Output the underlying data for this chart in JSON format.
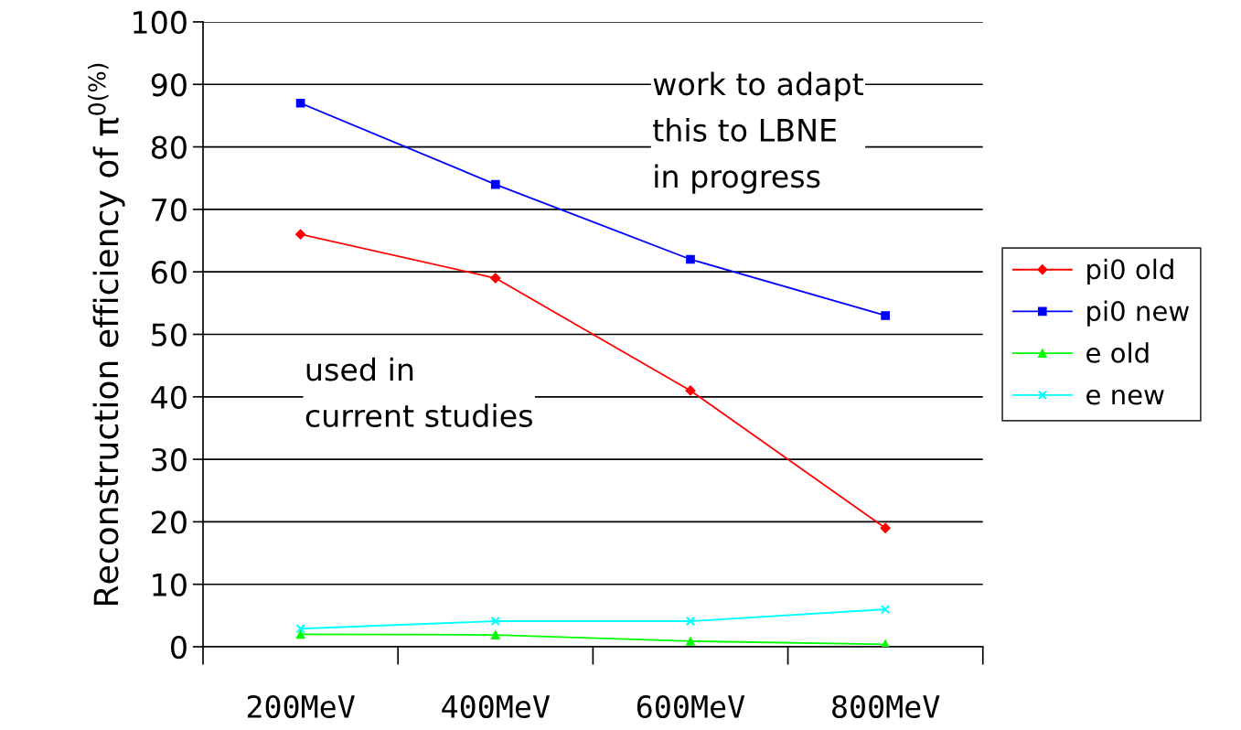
{
  "chart_data": {
    "type": "line",
    "ylabel": "Reconstruction efficiency of π$^{0(%)}$",
    "categories": [
      "200MeV",
      "400MeV",
      "600MeV",
      "800MeV"
    ],
    "series": [
      {
        "name": "pi0 old",
        "color": "#ff0000",
        "marker": "diamond",
        "values": [
          66,
          59,
          41,
          19
        ]
      },
      {
        "name": "pi0 new",
        "color": "#0000ff",
        "marker": "square",
        "values": [
          87,
          74,
          62,
          53
        ]
      },
      {
        "name": "e old",
        "color": "#00ff00",
        "marker": "triangle",
        "values": [
          2,
          1.9,
          0.9,
          0.4
        ]
      },
      {
        "name": "e new",
        "color": "#00ffff",
        "marker": "cross",
        "values": [
          2.9,
          4.1,
          4.1,
          6
        ]
      }
    ],
    "ylim": [
      0,
      100
    ],
    "yticks": [
      0,
      10,
      20,
      30,
      40,
      50,
      60,
      70,
      80,
      90,
      100
    ],
    "grid": "y",
    "legend": "right",
    "annotations": [
      "work to adapt\nthis to LBNE\nin progress",
      "used in\ncurrent studies"
    ]
  }
}
